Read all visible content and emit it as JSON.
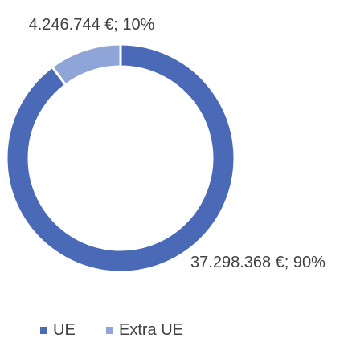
{
  "chart_data": {
    "type": "donut",
    "categories": [
      "UE",
      "Extra UE"
    ],
    "values": [
      37298368,
      4246744
    ],
    "value_labels": [
      "37.298.368 €; 90%",
      "4.246.744 €; 10%"
    ],
    "colors": [
      "#4a69b6",
      "#8fa5d8"
    ],
    "legend": "bottom"
  }
}
